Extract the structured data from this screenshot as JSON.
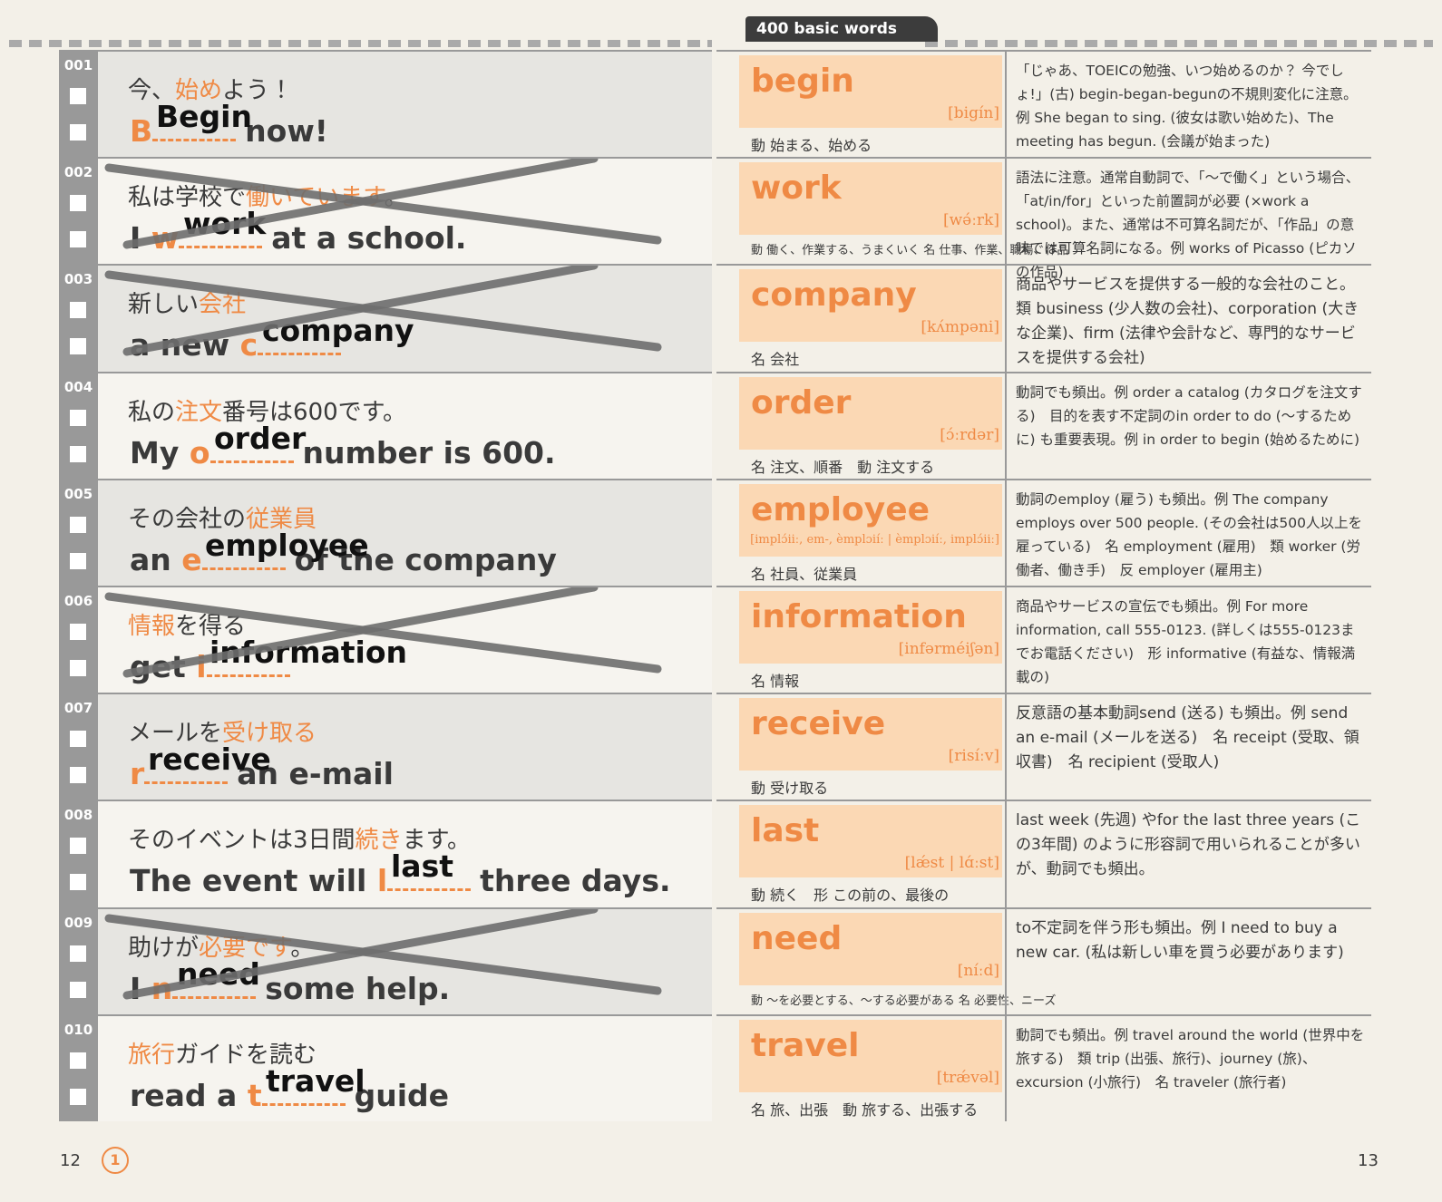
{
  "header": {
    "tab": "400 basic words"
  },
  "left_page": {
    "page_number": "12",
    "audio_track": "1",
    "rows": [
      {
        "number": "001",
        "ja": [
          {
            "text": "今、"
          },
          {
            "text": "始め",
            "highlight": true
          },
          {
            "text": "よう！"
          }
        ],
        "en": {
          "initial": "B",
          "tail": "now!"
        },
        "answer": "Begin",
        "crossed_out": false
      },
      {
        "number": "002",
        "ja": [
          {
            "text": "私は学校で"
          },
          {
            "text": "働いています",
            "highlight": true
          },
          {
            "text": "。"
          }
        ],
        "en": {
          "lead": "I",
          "initial": "w",
          "tail": "at a school."
        },
        "answer": "work",
        "crossed_out": true
      },
      {
        "number": "003",
        "ja": [
          {
            "text": "新しい"
          },
          {
            "text": "会社",
            "highlight": true
          }
        ],
        "en": {
          "lead": "a new",
          "initial": "c"
        },
        "answer": "company",
        "crossed_out": true
      },
      {
        "number": "004",
        "ja": [
          {
            "text": "私の"
          },
          {
            "text": "注文",
            "highlight": true
          },
          {
            "text": "番号は600です。"
          }
        ],
        "en": {
          "lead": "My",
          "initial": "o",
          "tail": "number is 600."
        },
        "answer": "order",
        "crossed_out": false
      },
      {
        "number": "005",
        "ja": [
          {
            "text": "その会社の"
          },
          {
            "text": "従業員",
            "highlight": true
          }
        ],
        "en": {
          "lead": "an",
          "initial": "e",
          "tail": "of the company"
        },
        "answer": "employee",
        "crossed_out": false
      },
      {
        "number": "006",
        "ja": [
          {
            "text": "情報",
            "highlight": true
          },
          {
            "text": "を得る"
          }
        ],
        "en": {
          "lead": "get",
          "initial": "i"
        },
        "answer": "information",
        "crossed_out": true
      },
      {
        "number": "007",
        "ja": [
          {
            "text": "メールを"
          },
          {
            "text": "受け取る",
            "highlight": true
          }
        ],
        "en": {
          "initial": "r",
          "tail": "an e-mail"
        },
        "answer": "receive",
        "crossed_out": false
      },
      {
        "number": "008",
        "ja": [
          {
            "text": "そのイベントは3日間"
          },
          {
            "text": "続き",
            "highlight": true
          },
          {
            "text": "ます。"
          }
        ],
        "en": {
          "lead": "The event will",
          "initial": "l",
          "tail": "three days."
        },
        "answer": "last",
        "crossed_out": false
      },
      {
        "number": "009",
        "ja": [
          {
            "text": "助けが"
          },
          {
            "text": "必要です",
            "highlight": true
          },
          {
            "text": "。"
          }
        ],
        "en": {
          "lead": "I",
          "initial": "n",
          "tail": "some help."
        },
        "answer": "need",
        "crossed_out": true
      },
      {
        "number": "010",
        "ja": [
          {
            "text": "旅行",
            "highlight": true
          },
          {
            "text": "ガイドを読む"
          }
        ],
        "en": {
          "lead": "read a",
          "initial": "t",
          "tail": "guide"
        },
        "answer": "travel",
        "crossed_out": false
      }
    ]
  },
  "right_page": {
    "page_number": "13",
    "entries": [
      {
        "word": "begin",
        "pron": "[bigín]",
        "pos": "動 始まる、始める",
        "notes": "「じゃあ、TOEICの勉強、いつ始めるのか？ 今でしょ!」(古) begin-began-begunの不規則変化に注意。例 She began to sing. (彼女は歌い始めた)、The meeting has begun. (会議が始まった)"
      },
      {
        "word": "work",
        "pron": "[wə́ːrk]",
        "pos": "動 働く、作業する、うまくいく 名 仕事、作業、職場、作品",
        "notes": "語法に注意。通常自動詞で、「〜で働く」という場合、「at/in/for」といった前置詞が必要 (×work a school)。また、通常は不可算名詞だが、「作品」の意味では可算名詞になる。例 works of Picasso (ピカソの作品)"
      },
      {
        "word": "company",
        "pron": "[kʌ́mpəni]",
        "pos": "名 会社",
        "notes": "商品やサービスを提供する一般的な会社のこと。類 business (少人数の会社)、corporation (大きな企業)、firm (法律や会計など、専門的なサービスを提供する会社)"
      },
      {
        "word": "order",
        "pron": "[ɔ́ːrdər]",
        "pos": "名 注文、順番　動 注文する",
        "notes": "動詞でも頻出。例 order a catalog (カタログを注文する)　目的を表す不定詞のin order to do (〜するために) も重要表現。例 in order to begin (始めるために)"
      },
      {
        "word": "employee",
        "pron": "[implɔ́iiː, em-, èmplɔiíː | èmplɔiíː, implɔ́iiː]",
        "pos": "名 社員、従業員",
        "notes": "動詞のemploy (雇う) も頻出。例 The company employs over 500 people. (その会社は500人以上を雇っている)　名 employment (雇用)　類 worker (労働者、働き手)　反 employer (雇用主)"
      },
      {
        "word": "information",
        "pron": "[infərméiʃən]",
        "pos": "名 情報",
        "notes": "商品やサービスの宣伝でも頻出。例 For more information, call 555-0123. (詳しくは555-0123までお電話ください)　形 informative (有益な、情報満載の)"
      },
      {
        "word": "receive",
        "pron": "[risíːv]",
        "pos": "動 受け取る",
        "notes": "反意語の基本動詞send (送る) も頻出。例 send an e-mail (メールを送る)　名 receipt (受取、領収書)　名 recipient (受取人)"
      },
      {
        "word": "last",
        "pron": "[lǽst | lɑ́ːst]",
        "pos": "動 続く　形 この前の、最後の",
        "notes": "last week (先週) やfor the last three years (この3年間) のように形容詞で用いられることが多いが、動詞でも頻出。"
      },
      {
        "word": "need",
        "pron": "[níːd]",
        "pos": "動 〜を必要とする、〜する必要がある 名 必要性、ニーズ",
        "notes": "to不定詞を伴う形も頻出。例 I need to buy a new car. (私は新しい車を買う必要があります)"
      },
      {
        "word": "travel",
        "pron": "[trǽvəl]",
        "pos": "名 旅、出張　動 旅する、出張する",
        "notes": "動詞でも頻出。例 travel around the world (世界中を旅する)　類 trip (出張、旅行)、journey (旅)、excursion (小旅行)　名 traveler (旅行者)"
      }
    ]
  }
}
